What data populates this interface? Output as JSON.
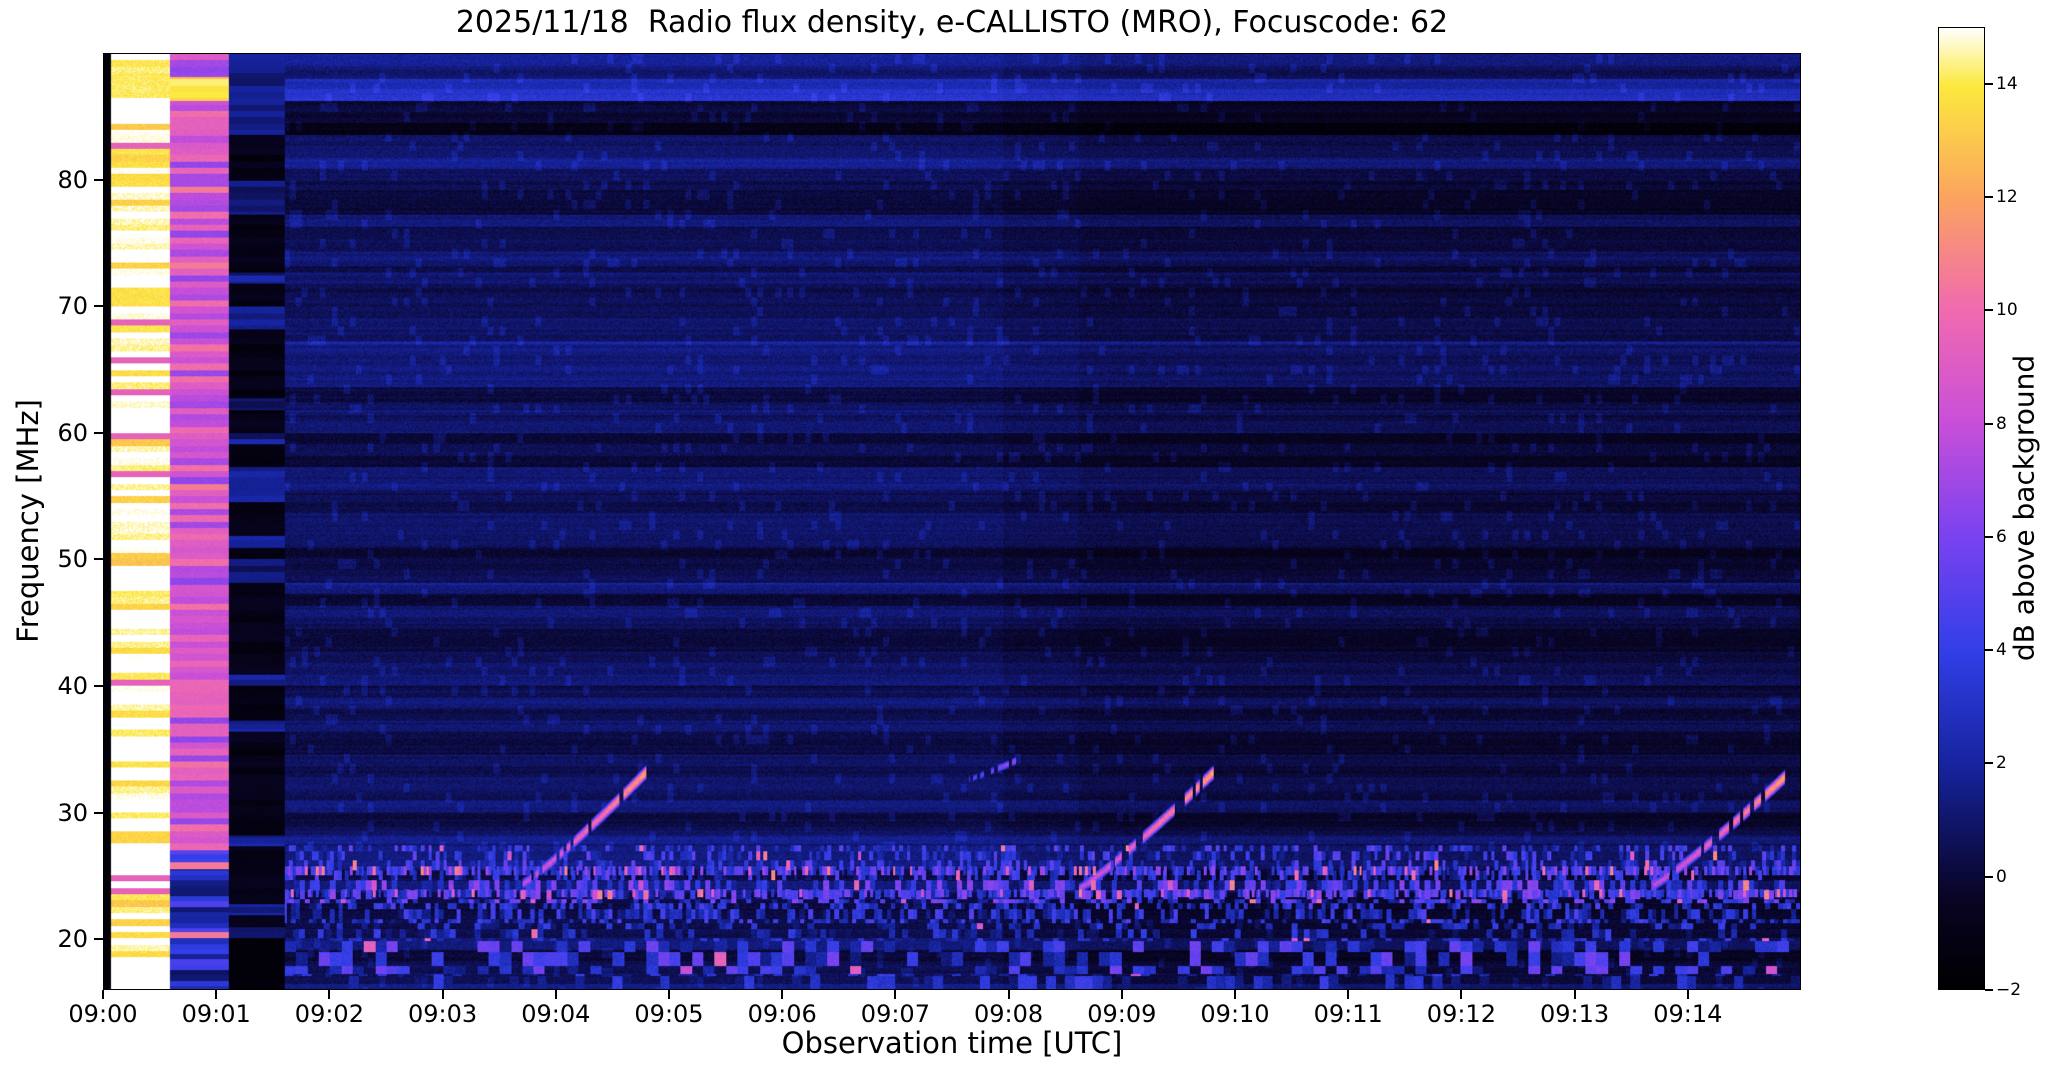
{
  "colors": {
    "background": "#ffffff",
    "text": "#000000"
  },
  "chart_data": {
    "type": "heatmap",
    "title": "2025/11/18  Radio flux density, e-CALLISTO (MRO), Focuscode: 62",
    "xlabel": "Observation time [UTC]",
    "ylabel": "Frequency [MHz]",
    "colorbar_label": "dB above background",
    "x_ticks": [
      "09:00",
      "09:01",
      "09:02",
      "09:03",
      "09:04",
      "09:05",
      "09:06",
      "09:07",
      "09:08",
      "09:09",
      "09:10",
      "09:11",
      "09:12",
      "09:13",
      "09:14"
    ],
    "x_range_min": [
      0,
      15
    ],
    "y_ticks": [
      20,
      30,
      40,
      50,
      60,
      70,
      80
    ],
    "y_range_mhz": [
      16,
      90
    ],
    "colorbar_tick_values": [
      -2,
      0,
      2,
      4,
      6,
      8,
      10,
      12,
      14
    ],
    "colorbar_tick_labels": [
      "−2",
      "0",
      "2",
      "4",
      "6",
      "8",
      "10",
      "12",
      "14"
    ],
    "color_range_db": [
      -2,
      15
    ],
    "grid": false,
    "legend": "none",
    "colormap_stops": [
      [
        0.0,
        0,
        0,
        0
      ],
      [
        0.09,
        8,
        4,
        34
      ],
      [
        0.13,
        12,
        11,
        66
      ],
      [
        0.235,
        22,
        36,
        160
      ],
      [
        0.353,
        50,
        63,
        232
      ],
      [
        0.47,
        122,
        66,
        240
      ],
      [
        0.59,
        201,
        79,
        217
      ],
      [
        0.706,
        240,
        106,
        176
      ],
      [
        0.824,
        251,
        164,
        95
      ],
      [
        0.94,
        252,
        233,
        62
      ],
      [
        1.0,
        255,
        255,
        255
      ]
    ],
    "stripe_amp_db": 1.5,
    "pixel_noise_db": 1.1,
    "background_epochs": [
      {
        "t0": 1.6,
        "t1": 7.95,
        "level_db": 0.6
      },
      {
        "t0": 7.95,
        "t1": 8.62,
        "level_db": 0.3
      },
      {
        "t0": 8.62,
        "t1": 15.01,
        "level_db": 0.05
      }
    ],
    "calibration_columns": [
      {
        "t0": 0.0,
        "t1": 0.06,
        "type": "edge",
        "seed": 1
      },
      {
        "t0": 0.06,
        "t1": 0.58,
        "type": "saturated",
        "seed": 2
      },
      {
        "t0": 0.58,
        "t1": 1.1,
        "type": "bright",
        "seed": 3
      },
      {
        "t0": 1.1,
        "t1": 1.6,
        "type": "dark",
        "seed": 4
      }
    ],
    "bands": [
      {
        "f0": 88.0,
        "f1": 90.0,
        "add_db": 0.9
      },
      {
        "f0": 86.3,
        "f1": 88.0,
        "add_db": 2.2
      },
      {
        "f0": 83.6,
        "f1": 86.3,
        "add_db": -1.2
      },
      {
        "f0": 79.2,
        "f1": 83.6,
        "add_db": 0.4
      },
      {
        "f0": 73.2,
        "f1": 74.4,
        "add_db": 0.8
      },
      {
        "f0": 67.0,
        "f1": 68.2,
        "add_db": 0.7
      },
      {
        "f0": 61.4,
        "f1": 62.4,
        "add_db": 0.6
      },
      {
        "f0": 48.0,
        "f1": 49.2,
        "add_db": 0.5
      },
      {
        "f0": 38.6,
        "f1": 39.6,
        "add_db": 0.4
      },
      {
        "f0": 27.5,
        "f1": 28.8,
        "add_db": 0.5
      }
    ],
    "rfi_bands": [
      {
        "f0": 24.6,
        "f1": 27.4,
        "density": 0.4,
        "base_db": 1.0,
        "range_db": 4.5,
        "warm_prob": 0.035,
        "tcells": 30,
        "fcells": 1.3
      },
      {
        "f0": 22.8,
        "f1": 24.6,
        "density": 0.55,
        "base_db": 1.4,
        "range_db": 5.2,
        "warm_prob": 0.05,
        "tcells": 22,
        "fcells": 1.3
      },
      {
        "f0": 21.2,
        "f1": 22.8,
        "density": 0.45,
        "base_db": 1.0,
        "range_db": 4.0,
        "warm_prob": 0.02,
        "tcells": 26,
        "fcells": 1.3
      },
      {
        "f0": 19.8,
        "f1": 21.2,
        "density": 0.3,
        "base_db": 0.8,
        "range_db": 3.5,
        "warm_prob": 0.01,
        "tcells": 18,
        "fcells": 1.3
      },
      {
        "f0": 17.2,
        "f1": 19.8,
        "density": 0.45,
        "base_db": 1.2,
        "range_db": 4.8,
        "warm_prob": 0.03,
        "tcells": 10,
        "fcells": 0.9
      },
      {
        "f0": 16.0,
        "f1": 17.2,
        "density": 0.3,
        "base_db": 0.8,
        "range_db": 3.5,
        "warm_prob": 0.01,
        "tcells": 12,
        "fcells": 1.0
      },
      {
        "f0": 25.0,
        "f1": 25.7,
        "density": 0.65,
        "base_db": 2.2,
        "range_db": 4.8,
        "warm_prob": 0.1,
        "tcells": 40,
        "fcells": 1.0
      },
      {
        "f0": 23.3,
        "f1": 23.9,
        "density": 0.6,
        "base_db": 2.0,
        "range_db": 4.5,
        "warm_prob": 0.08,
        "tcells": 40,
        "fcells": 1.0
      }
    ],
    "bursts": [
      {
        "label": "type-III-burst-1",
        "t0": 3.7,
        "t1": 4.8,
        "f0": 24.3,
        "f1": 33.2,
        "peak_db": 10,
        "width_mhz": 0.45,
        "sparse": false,
        "seed": 101
      },
      {
        "label": "type-III-fragments",
        "t0": 7.65,
        "t1": 8.1,
        "f0": 32.6,
        "f1": 34.2,
        "peak_db": 6,
        "width_mhz": 0.35,
        "sparse": true,
        "seed": 202
      },
      {
        "label": "type-III-burst-2",
        "t0": 8.6,
        "t1": 9.82,
        "f0": 23.8,
        "f1": 33.2,
        "peak_db": 10,
        "width_mhz": 0.45,
        "sparse": false,
        "seed": 303
      },
      {
        "label": "type-III-burst-3",
        "t0": 13.7,
        "t1": 14.87,
        "f0": 24.2,
        "f1": 32.8,
        "peak_db": 10,
        "width_mhz": 0.45,
        "sparse": false,
        "seed": 404
      }
    ]
  }
}
